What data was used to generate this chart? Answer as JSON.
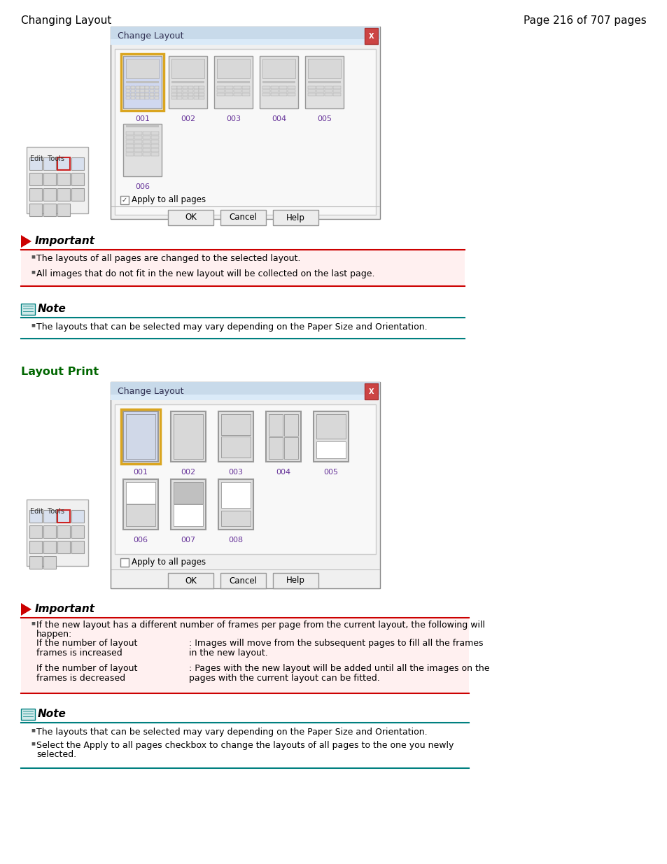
{
  "page_title_left": "Changing Layout",
  "page_title_right": "Page 216 of 707 pages",
  "bg_color": "#ffffff",
  "section2_title": "Layout Print",
  "important1_title": "Important",
  "important1_bullets": [
    "The layouts of all pages are changed to the selected layout.",
    "All images that do not fit in the new layout will be collected on the last page."
  ],
  "note1_title": "Note",
  "note1_bullets": [
    "The layouts that can be selected may vary depending on the Paper Size and Orientation."
  ],
  "important2_title": "Important",
  "important2_bullet0": "If the new layout has a different number of frames per page from the current layout, the following will",
  "important2_bullet0b": "happen:",
  "important2_col1_r1a": "If the number of layout",
  "important2_col1_r1b": "frames is increased",
  "important2_col2_r1a": ": Images will move from the subsequent pages to fill all the frames",
  "important2_col2_r1b": "in the new layout.",
  "important2_col1_r2a": "If the number of layout",
  "important2_col1_r2b": "frames is decreased",
  "important2_col2_r2a": ": Pages with the new layout will be added until all the images on the",
  "important2_col2_r2b": "pages with the current layout can be fitted.",
  "note2_title": "Note",
  "note2_bullet1": "The layouts that can be selected may vary depending on the Paper Size and Orientation.",
  "note2_bullet2a": "Select the Apply to all pages checkbox to change the layouts of all pages to the one you newly",
  "note2_bullet2b": "selected.",
  "dialog_title": "Change Layout",
  "important_bg": "#fff0f0",
  "important_border": "#cc0000",
  "note_border": "#008080",
  "section_title_color": "#006600",
  "label_color": "#663399",
  "titlebar_color": "#b8cfe0",
  "dialog_bg": "#f0f0f0",
  "content_bg": "#f5f5f5",
  "icon_fill": "#e0e0e0",
  "icon_border": "#999999",
  "selected_border": "#daa520",
  "selected_fill": "#d0d8f0"
}
